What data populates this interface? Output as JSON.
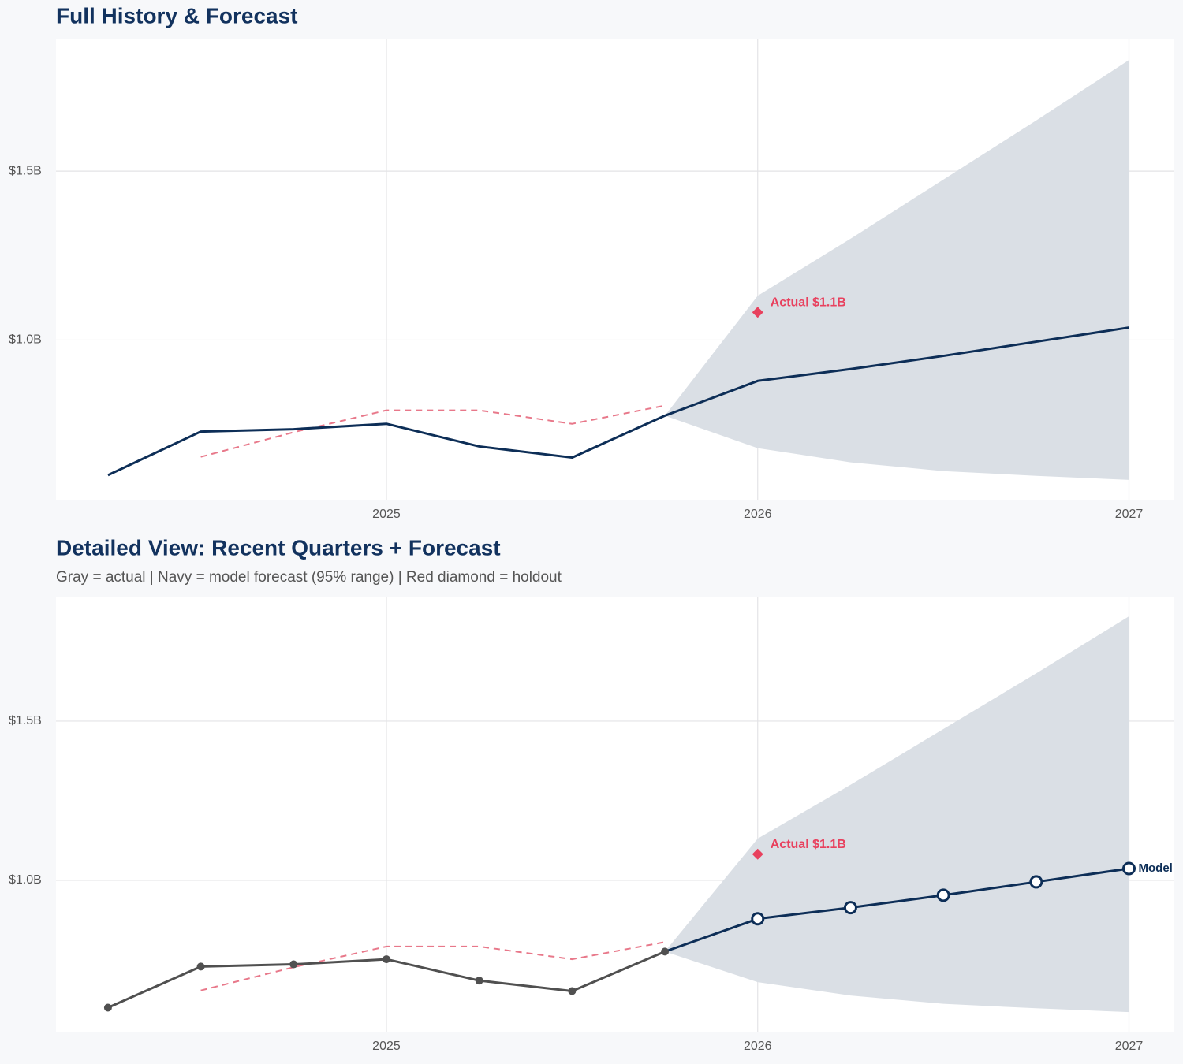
{
  "chart_data": [
    {
      "type": "line",
      "title": "Full History & Forecast",
      "x": [
        2024.25,
        2024.5,
        2024.75,
        2025,
        2025.25,
        2025.5,
        2025.75,
        2026,
        2026.25,
        2026.5,
        2026.75,
        2027
      ],
      "xlim": [
        2024.11,
        2027.12
      ],
      "xticks": [
        2025,
        2026,
        2027
      ],
      "ylim": [
        0.525,
        1.89
      ],
      "yticks": [
        {
          "value": 1.0,
          "label": "$1.0B"
        },
        {
          "value": 1.5,
          "label": "$1.5B"
        }
      ],
      "grid": true,
      "band": {
        "color": "#dadfe5",
        "lower": [
          null,
          null,
          null,
          null,
          null,
          null,
          0.776,
          0.68,
          0.638,
          0.612,
          0.598,
          0.586
        ],
        "upper": [
          null,
          null,
          null,
          null,
          null,
          null,
          0.776,
          1.131,
          1.3,
          1.475,
          1.65,
          1.829
        ]
      },
      "series": [
        {
          "color": "#e8788a",
          "dash": true,
          "values": [
            null,
            0.654,
            0.727,
            0.792,
            0.792,
            0.752,
            0.806,
            null,
            null,
            null,
            null,
            null
          ]
        },
        {
          "color": "#0d2e57",
          "values": [
            0.6,
            0.729,
            0.736,
            0.752,
            0.685,
            0.652,
            0.776,
            null,
            null,
            null,
            null,
            null
          ]
        },
        {
          "color": "#0d2e57",
          "values": [
            null,
            null,
            null,
            null,
            null,
            null,
            0.776,
            0.879,
            0.914,
            0.953,
            0.995,
            1.037
          ]
        }
      ],
      "annotation": {
        "text": "Actual $1.1B",
        "x": 2026,
        "y": 1.082,
        "color": "#e8415e"
      }
    },
    {
      "type": "line",
      "title": "Detailed View: Recent Quarters + Forecast",
      "subtitle": "Gray = actual  |  Navy = model forecast (95% range)  |  Red diamond = holdout",
      "x": [
        2024.25,
        2024.5,
        2024.75,
        2025,
        2025.25,
        2025.5,
        2025.75,
        2026,
        2026.25,
        2026.5,
        2026.75,
        2027
      ],
      "xlim": [
        2024.11,
        2027.12
      ],
      "xticks": [
        2025,
        2026,
        2027
      ],
      "ylim": [
        0.522,
        1.891
      ],
      "yticks": [
        {
          "value": 1.0,
          "label": "$1.0B"
        },
        {
          "value": 1.5,
          "label": "$1.5B"
        }
      ],
      "grid": true,
      "band": {
        "color": "#dadfe5",
        "lower": [
          null,
          null,
          null,
          null,
          null,
          null,
          0.776,
          0.68,
          0.638,
          0.612,
          0.598,
          0.586
        ],
        "upper": [
          null,
          null,
          null,
          null,
          null,
          null,
          0.776,
          1.131,
          1.3,
          1.475,
          1.65,
          1.829
        ]
      },
      "series": [
        {
          "color": "#e8788a",
          "dash": true,
          "values": [
            null,
            0.654,
            0.727,
            0.792,
            0.792,
            0.752,
            0.806,
            null,
            null,
            null,
            null,
            null
          ]
        },
        {
          "color": "#505050",
          "marker": "filled",
          "values": [
            0.6,
            0.729,
            0.736,
            0.752,
            0.685,
            0.652,
            0.776,
            null,
            null,
            null,
            null,
            null
          ]
        },
        {
          "name": "Model",
          "color": "#0d2e57",
          "marker": "open",
          "values": [
            null,
            null,
            null,
            null,
            null,
            null,
            0.776,
            0.879,
            0.914,
            0.953,
            0.995,
            1.037
          ]
        }
      ],
      "annotation": {
        "text": "Actual $1.1B",
        "x": 2026,
        "y": 1.082,
        "color": "#e8415e"
      }
    }
  ]
}
